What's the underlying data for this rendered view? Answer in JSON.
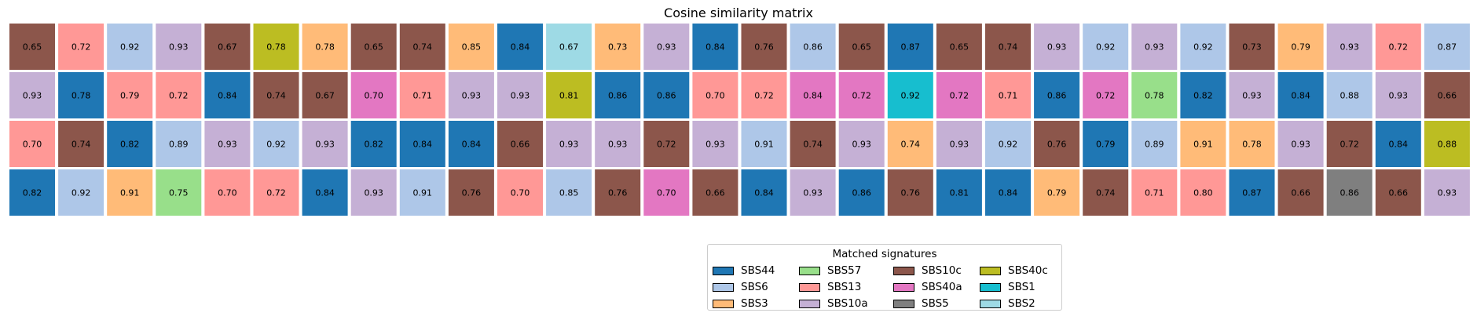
{
  "chart_data": {
    "type": "heatmap",
    "title": "Cosine similarity matrix",
    "rows": 4,
    "columns": 30,
    "legend_title": "Matched signatures",
    "legend_placement": "bottom-center",
    "signatures": [
      {
        "name": "SBS44",
        "color": "#1f77b4"
      },
      {
        "name": "SBS6",
        "color": "#aec7e8"
      },
      {
        "name": "SBS3",
        "color": "#ffbb78"
      },
      {
        "name": "SBS57",
        "color": "#98df8a"
      },
      {
        "name": "SBS13",
        "color": "#ff9896"
      },
      {
        "name": "SBS10a",
        "color": "#c5b0d5"
      },
      {
        "name": "SBS10c",
        "color": "#8c564b"
      },
      {
        "name": "SBS40a",
        "color": "#e377c2"
      },
      {
        "name": "SBS5",
        "color": "#7f7f7f"
      },
      {
        "name": "SBS40c",
        "color": "#bcbd22"
      },
      {
        "name": "SBS1",
        "color": "#17becf"
      },
      {
        "name": "SBS2",
        "color": "#9edae5"
      }
    ],
    "values": [
      [
        0.65,
        0.72,
        0.92,
        0.93,
        0.67,
        0.78,
        0.78,
        0.65,
        0.74,
        0.85,
        0.84,
        0.67,
        0.73,
        0.93,
        0.84,
        0.76,
        0.86,
        0.65,
        0.87,
        0.65,
        0.74,
        0.93,
        0.92,
        0.93,
        0.92,
        0.73,
        0.79,
        0.93,
        0.72,
        0.87
      ],
      [
        0.93,
        0.78,
        0.79,
        0.72,
        0.84,
        0.74,
        0.67,
        0.7,
        0.71,
        0.93,
        0.93,
        0.81,
        0.86,
        0.86,
        0.7,
        0.72,
        0.84,
        0.72,
        0.92,
        0.72,
        0.71,
        0.86,
        0.72,
        0.78,
        0.82,
        0.93,
        0.84,
        0.88,
        0.93,
        0.66
      ],
      [
        0.7,
        0.74,
        0.82,
        0.89,
        0.93,
        0.92,
        0.93,
        0.82,
        0.84,
        0.84,
        0.66,
        0.93,
        0.93,
        0.72,
        0.93,
        0.91,
        0.74,
        0.93,
        0.74,
        0.93,
        0.92,
        0.76,
        0.79,
        0.89,
        0.91,
        0.78,
        0.93,
        0.72,
        0.84,
        0.88
      ],
      [
        0.82,
        0.92,
        0.91,
        0.75,
        0.7,
        0.72,
        0.84,
        0.93,
        0.91,
        0.76,
        0.7,
        0.85,
        0.76,
        0.7,
        0.66,
        0.84,
        0.93,
        0.86,
        0.76,
        0.81,
        0.84,
        0.79,
        0.74,
        0.71,
        0.8,
        0.87,
        0.66,
        0.86,
        0.66,
        0.93
      ]
    ],
    "matched": [
      [
        "SBS10c",
        "SBS13",
        "SBS6",
        "SBS10a",
        "SBS10c",
        "SBS40c",
        "SBS3",
        "SBS10c",
        "SBS10c",
        "SBS3",
        "SBS44",
        "SBS2",
        "SBS3",
        "SBS10a",
        "SBS44",
        "SBS10c",
        "SBS6",
        "SBS10c",
        "SBS44",
        "SBS10c",
        "SBS10c",
        "SBS10a",
        "SBS6",
        "SBS10a",
        "SBS6",
        "SBS10c",
        "SBS3",
        "SBS10a",
        "SBS13",
        "SBS6"
      ],
      [
        "SBS10a",
        "SBS44",
        "SBS13",
        "SBS13",
        "SBS44",
        "SBS10c",
        "SBS10c",
        "SBS40a",
        "SBS13",
        "SBS10a",
        "SBS10a",
        "SBS40c",
        "SBS44",
        "SBS44",
        "SBS13",
        "SBS13",
        "SBS40a",
        "SBS40a",
        "SBS1",
        "SBS40a",
        "SBS13",
        "SBS44",
        "SBS40a",
        "SBS57",
        "SBS44",
        "SBS10a",
        "SBS44",
        "SBS6",
        "SBS10a",
        "SBS10c"
      ],
      [
        "SBS13",
        "SBS10c",
        "SBS44",
        "SBS6",
        "SBS10a",
        "SBS6",
        "SBS10a",
        "SBS44",
        "SBS44",
        "SBS44",
        "SBS10c",
        "SBS10a",
        "SBS10a",
        "SBS10c",
        "SBS10a",
        "SBS6",
        "SBS10c",
        "SBS10a",
        "SBS3",
        "SBS10a",
        "SBS6",
        "SBS10c",
        "SBS44",
        "SBS6",
        "SBS3",
        "SBS3",
        "SBS10a",
        "SBS10c",
        "SBS44",
        "SBS40c"
      ],
      [
        "SBS44",
        "SBS6",
        "SBS3",
        "SBS57",
        "SBS13",
        "SBS13",
        "SBS44",
        "SBS10a",
        "SBS6",
        "SBS10c",
        "SBS13",
        "SBS6",
        "SBS10c",
        "SBS40a",
        "SBS10c",
        "SBS44",
        "SBS10a",
        "SBS44",
        "SBS10c",
        "SBS44",
        "SBS44",
        "SBS3",
        "SBS10c",
        "SBS13",
        "SBS13",
        "SBS44",
        "SBS10c",
        "SBS5",
        "SBS10c",
        "SBS10a"
      ]
    ]
  }
}
